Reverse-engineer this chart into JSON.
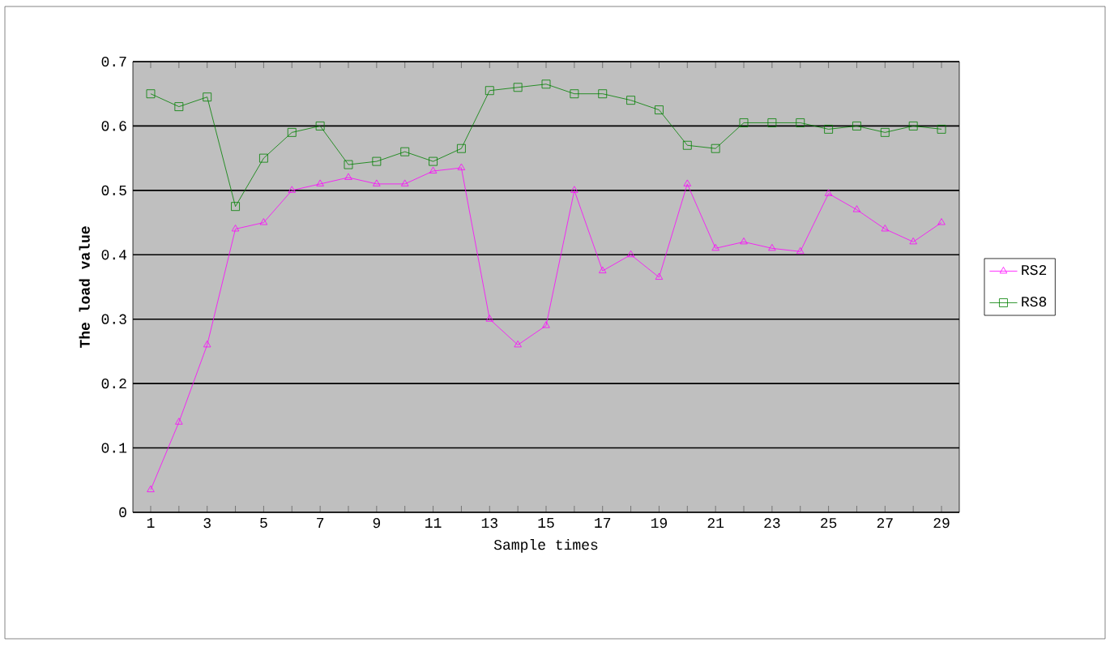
{
  "chart_data": {
    "type": "line",
    "xlabel": "Sample times",
    "ylabel": "The load value",
    "categories": [
      "1",
      null,
      "3",
      null,
      "5",
      null,
      "7",
      null,
      "9",
      null,
      "11",
      null,
      "13",
      null,
      "15",
      null,
      "17",
      null,
      "19",
      null,
      "21",
      null,
      "23",
      null,
      "25",
      null,
      "27",
      null,
      "29"
    ],
    "series": [
      {
        "name": "RS2",
        "color": "#ff00ff",
        "marker": "triangle",
        "values": [
          0.035,
          0.14,
          0.26,
          0.44,
          0.45,
          0.5,
          0.51,
          0.52,
          0.51,
          0.51,
          0.53,
          0.535,
          0.3,
          0.26,
          0.29,
          0.5,
          0.375,
          0.4,
          0.365,
          0.51,
          0.41,
          0.42,
          0.41,
          0.405,
          0.495,
          0.47,
          0.44,
          0.42,
          0.45
        ]
      },
      {
        "name": "RS8",
        "color": "#008000",
        "marker": "square",
        "values": [
          0.65,
          0.63,
          0.645,
          0.475,
          0.55,
          0.59,
          0.6,
          0.54,
          0.545,
          0.56,
          0.545,
          0.565,
          0.655,
          0.66,
          0.665,
          0.65,
          0.65,
          0.64,
          0.625,
          0.57,
          0.565,
          0.605,
          0.605,
          0.605,
          0.595,
          0.6,
          0.59,
          0.6,
          0.595
        ]
      }
    ],
    "ylim": [
      0,
      0.7
    ],
    "yticks": [
      0,
      0.1,
      0.2,
      0.3,
      0.4,
      0.5,
      0.6,
      0.7
    ],
    "grid": "y",
    "legend": "right"
  }
}
